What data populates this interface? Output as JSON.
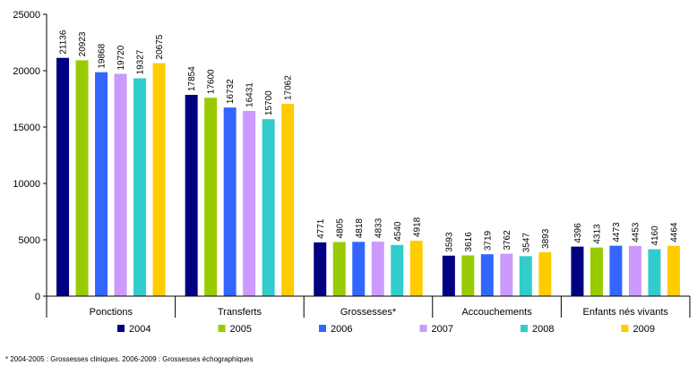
{
  "chart_data": {
    "type": "bar",
    "categories": [
      "Ponctions",
      "Transferts",
      "Grossesses*",
      "Accouchements",
      "Enfants nés vivants"
    ],
    "series": [
      {
        "name": "2004",
        "color": "#000080",
        "values": [
          21136,
          17854,
          4771,
          3593,
          4396
        ]
      },
      {
        "name": "2005",
        "color": "#99cc00",
        "values": [
          20923,
          17600,
          4805,
          3616,
          4313
        ]
      },
      {
        "name": "2006",
        "color": "#3366ff",
        "values": [
          19868,
          16732,
          4818,
          3719,
          4473
        ]
      },
      {
        "name": "2007",
        "color": "#cc99ff",
        "values": [
          19720,
          16431,
          4833,
          3762,
          4453
        ]
      },
      {
        "name": "2008",
        "color": "#33cccc",
        "values": [
          19327,
          15700,
          4540,
          3547,
          4160
        ]
      },
      {
        "name": "2009",
        "color": "#ffcc00",
        "values": [
          20675,
          17062,
          4918,
          3893,
          4464
        ]
      }
    ],
    "ylim": [
      0,
      25000
    ],
    "yticks": [
      0,
      5000,
      10000,
      15000,
      20000,
      25000
    ],
    "footnote": "* 2004-2005 : Grossesses cliniques. 2006-2009 : Grossesses échographiques",
    "legend": "bottom"
  }
}
